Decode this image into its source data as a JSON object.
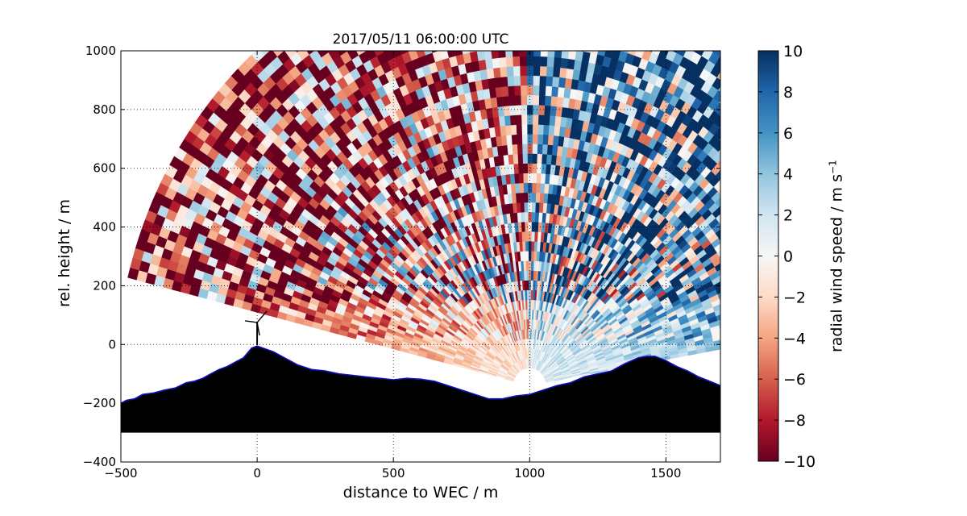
{
  "chart_data": {
    "type": "heatmap",
    "title": "2017/05/11 06:00:00 UTC",
    "xlabel": "distance to WEC / m",
    "ylabel": "rel. height / m",
    "xlim": [
      -500,
      1700
    ],
    "ylim": [
      -400,
      1000
    ],
    "xticks": [
      -500,
      0,
      500,
      1000,
      1500
    ],
    "yticks": [
      -400,
      -200,
      0,
      200,
      400,
      600,
      800,
      1000
    ],
    "xtick_labels": [
      "−500",
      "0",
      "500",
      "1000",
      "1500"
    ],
    "ytick_labels": [
      "−400",
      "−200",
      "0",
      "200",
      "400",
      "600",
      "800",
      "1000"
    ],
    "grid": true,
    "colorbar": {
      "label": "radial wind speed / m s",
      "label_superscript": "−1",
      "min": -10,
      "max": 10,
      "ticks": [
        -10,
        -8,
        -6,
        -4,
        -2,
        0,
        2,
        4,
        6,
        8,
        10
      ],
      "tick_labels": [
        "−10",
        "−8",
        "−6",
        "−4",
        "−2",
        "0",
        "2",
        "4",
        "6",
        "8",
        "10"
      ],
      "colormap": "RdBu",
      "colors": [
        "#67001f",
        "#b2182b",
        "#d6604d",
        "#f4a582",
        "#fddbc7",
        "#f7f7f7",
        "#d1e5f0",
        "#92c5de",
        "#4393c3",
        "#2166ac",
        "#053061"
      ]
    },
    "scan": {
      "origin": [
        1000,
        -140
      ],
      "range_min": 60,
      "range_max": 1520,
      "elevation_min_deg": 10,
      "elevation_max_deg": 166
    },
    "terrain": {
      "x": [
        -500,
        -480,
        -450,
        -420,
        -380,
        -340,
        -300,
        -260,
        -230,
        -200,
        -170,
        -140,
        -110,
        -80,
        -50,
        -20,
        0,
        30,
        60,
        100,
        150,
        200,
        250,
        300,
        350,
        400,
        450,
        500,
        550,
        600,
        650,
        700,
        750,
        800,
        850,
        900,
        950,
        1000,
        1050,
        1100,
        1150,
        1200,
        1250,
        1300,
        1350,
        1400,
        1430,
        1460,
        1500,
        1540,
        1580,
        1620,
        1660,
        1700
      ],
      "y": [
        -200,
        -190,
        -185,
        -170,
        -165,
        -155,
        -148,
        -130,
        -125,
        -115,
        -100,
        -85,
        -75,
        -60,
        -45,
        -12,
        -5,
        -15,
        -25,
        -45,
        -70,
        -85,
        -90,
        -100,
        -105,
        -110,
        -115,
        -120,
        -115,
        -118,
        -125,
        -140,
        -155,
        -170,
        -185,
        -185,
        -175,
        -170,
        -155,
        -140,
        -130,
        -110,
        -100,
        -90,
        -65,
        -45,
        -40,
        -40,
        -55,
        -75,
        -90,
        -110,
        -125,
        -140
      ],
      "fill_bottom": -300,
      "fill_color": "#000000",
      "outline_color": "#1010c0"
    },
    "turbine": {
      "x": 0,
      "hub_height": 75
    }
  }
}
